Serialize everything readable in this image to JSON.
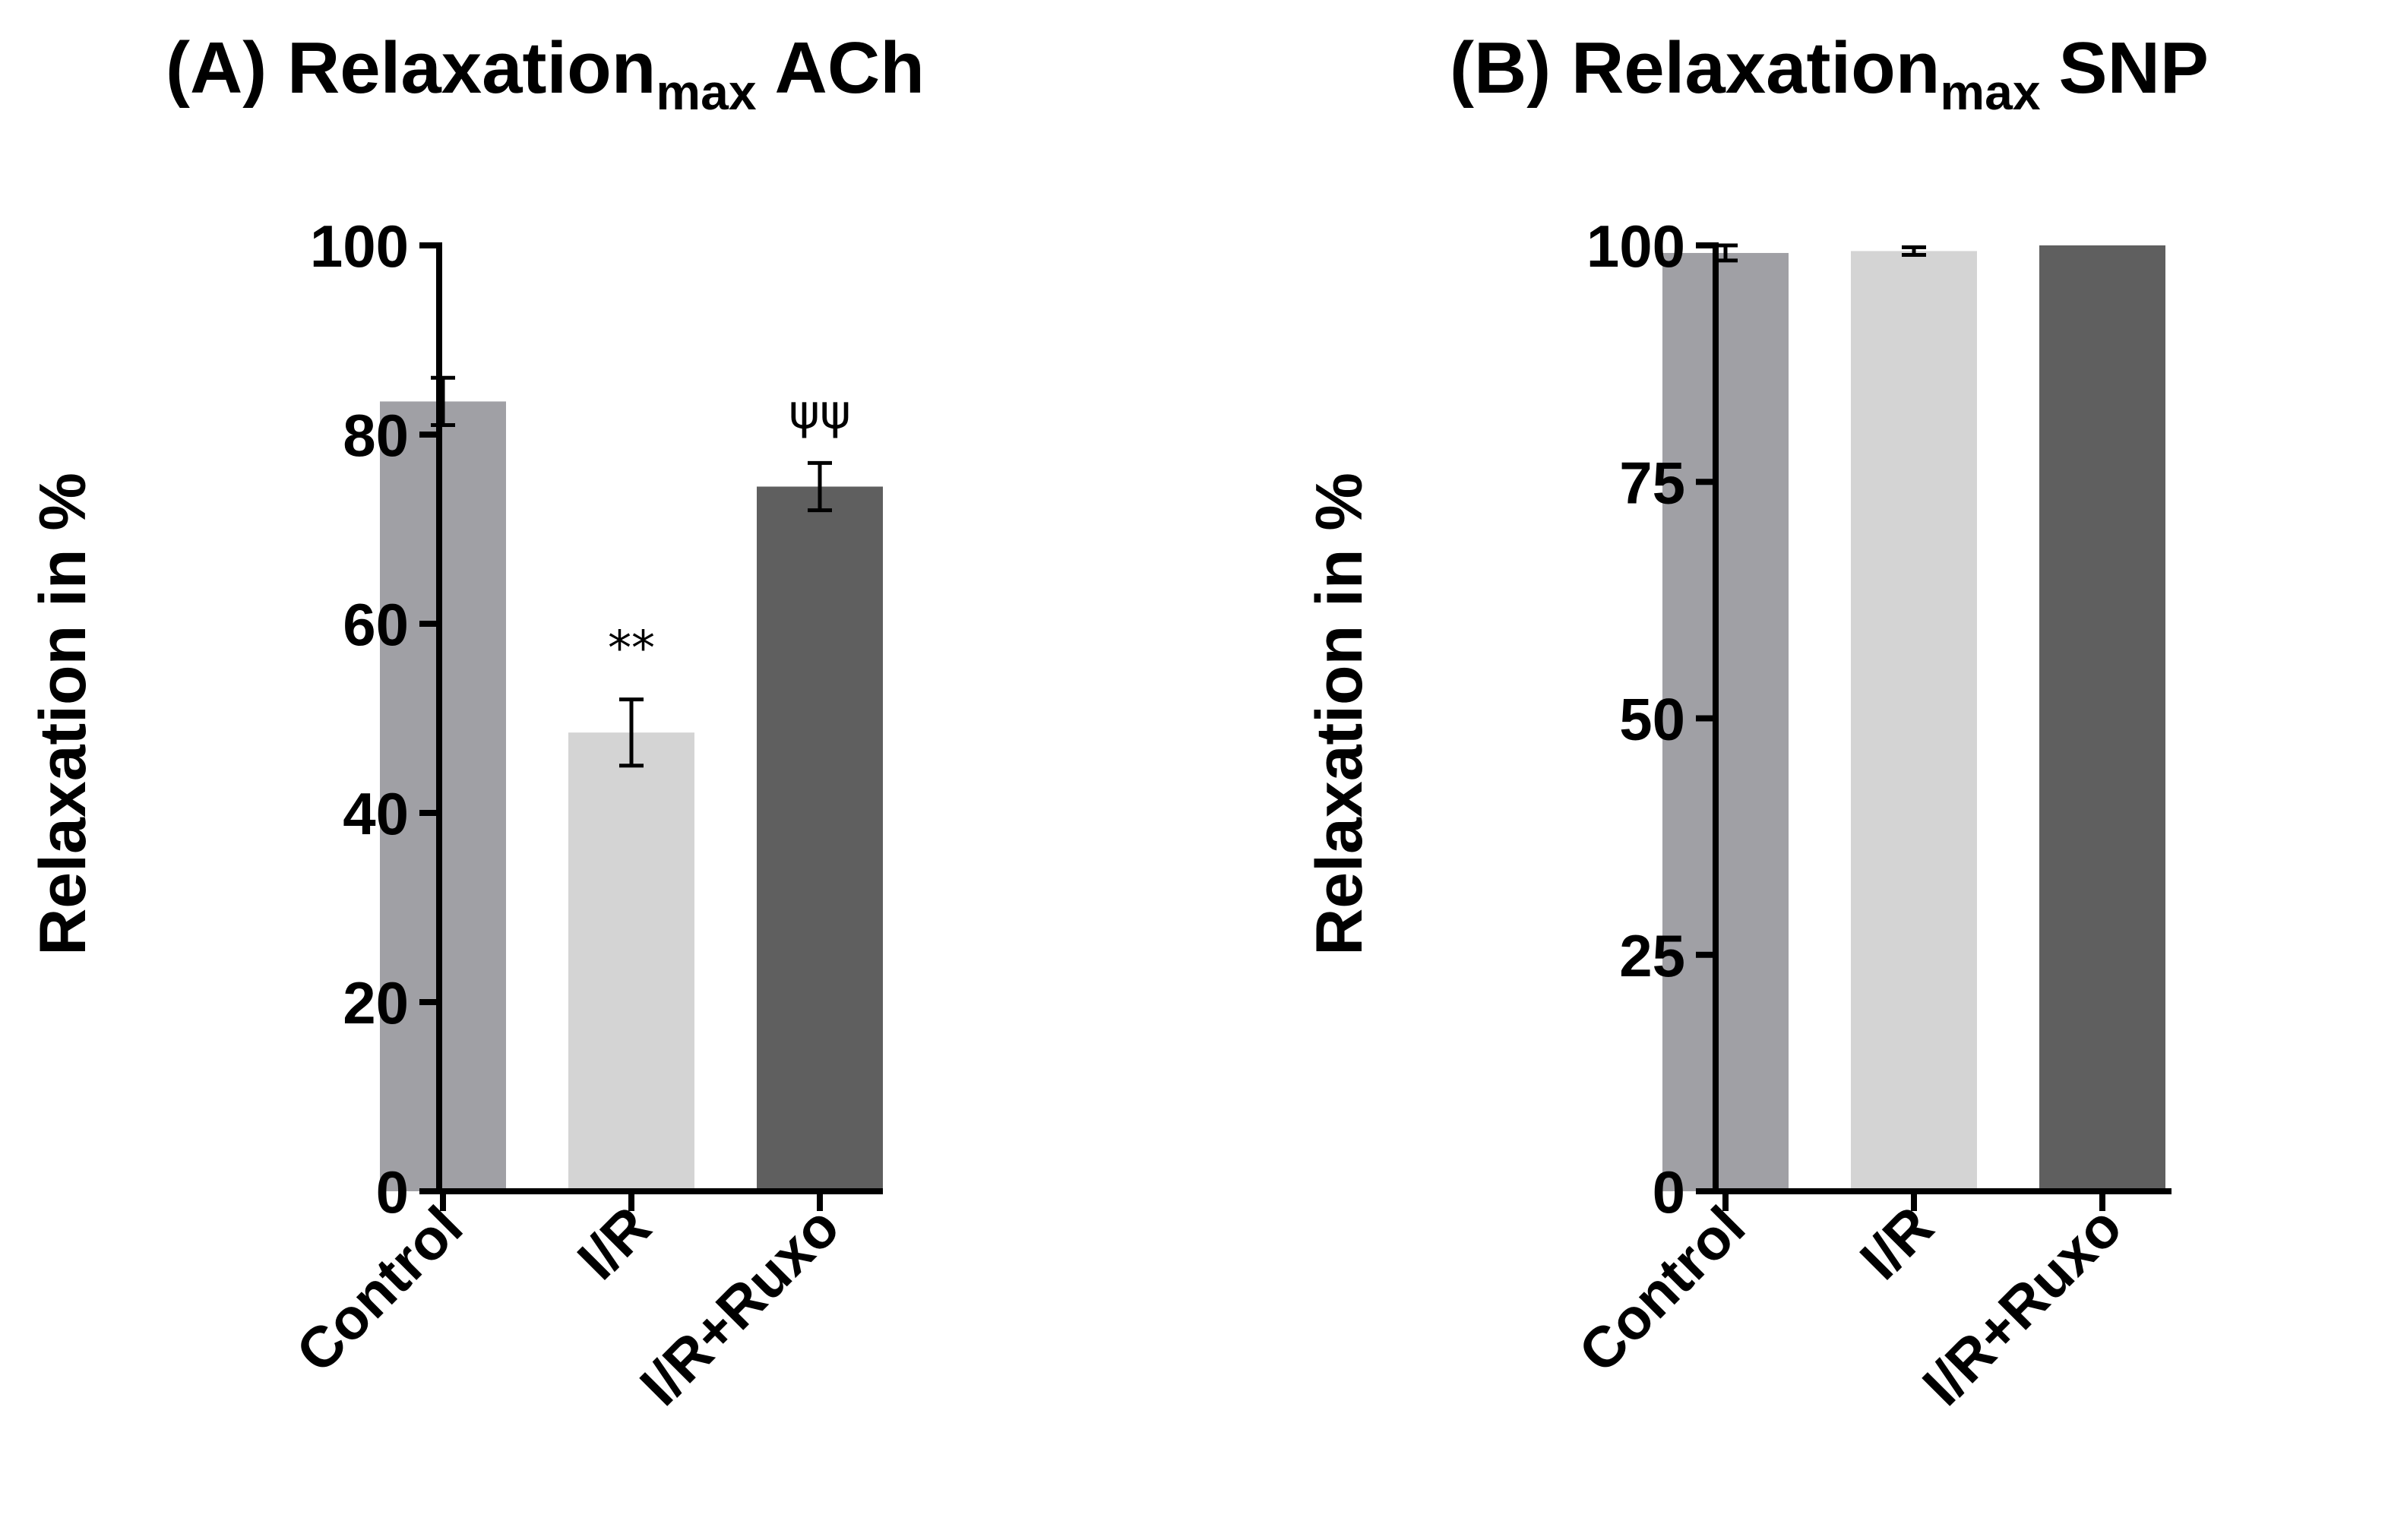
{
  "chart_data": [
    {
      "type": "bar",
      "panel": "A",
      "title": {
        "prefix": "(A) Relaxation",
        "subscript": "max",
        "suffix": "ACh"
      },
      "ylabel": "Relaxation in %",
      "xlabel": "",
      "ylim": [
        0,
        100
      ],
      "yticks": [
        "0",
        "20",
        "40",
        "60",
        "80",
        "100"
      ],
      "categories": [
        "Control",
        "I/R",
        "I/R+Ruxo"
      ],
      "values": [
        83.5,
        48.5,
        74.5
      ],
      "errors": [
        2.5,
        3.5,
        2.5
      ],
      "colors": [
        "#a0a0a5",
        "#d4d4d4",
        "#5f5f5f"
      ],
      "annotations": [
        "",
        "**",
        "ψψ"
      ]
    },
    {
      "type": "bar",
      "panel": "B",
      "title": {
        "prefix": "(B) Relaxation",
        "subscript": "max",
        "suffix": "SNP"
      },
      "ylabel": "Relaxation in %",
      "xlabel": "",
      "ylim": [
        0,
        100
      ],
      "yticks": [
        "0",
        "25",
        "50",
        "75",
        "100"
      ],
      "categories": [
        "Control",
        "I/R",
        "I/R+Ruxo"
      ],
      "values": [
        99.2,
        99.4,
        100
      ],
      "errors": [
        0.8,
        0.4,
        0
      ],
      "colors": [
        "#a0a0a5",
        "#d4d4d4",
        "#5f5f5f"
      ],
      "annotations": [
        "",
        "",
        ""
      ]
    }
  ]
}
